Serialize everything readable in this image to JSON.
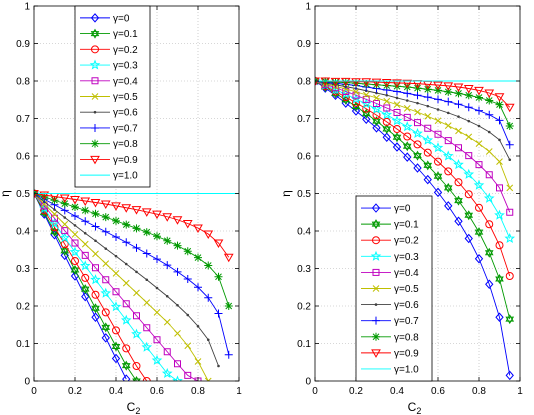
{
  "chart_data": [
    {
      "type": "line",
      "title": "",
      "xlabel": "C",
      "xlabel_sub": "2",
      "ylabel": "η",
      "xlim": [
        0,
        1
      ],
      "ylim": [
        0,
        1
      ],
      "xticks": [
        0,
        0.2,
        0.4,
        0.6,
        0.8,
        1
      ],
      "yticks": [
        0,
        0.1,
        0.2,
        0.3,
        0.4,
        0.5,
        0.6,
        0.7,
        0.8,
        0.9,
        1
      ],
      "xtick_labels": [
        "0",
        "0.2",
        "0.4",
        "0.6",
        "0.8",
        "1"
      ],
      "ytick_labels": [
        "0",
        "0.1",
        "0.2",
        "0.3",
        "0.4",
        "0.5",
        "0.6",
        "0.7",
        "0.8",
        "0.9",
        "1"
      ],
      "grid": true,
      "legend_position": "upper-center",
      "series": [
        {
          "name": "γ=0",
          "color": "#0000ff",
          "marker": "diamond",
          "x": [
            0,
            0.05,
            0.1,
            0.15,
            0.2,
            0.25,
            0.3,
            0.35,
            0.4,
            0.45
          ],
          "y": [
            0.5,
            0.445,
            0.39,
            0.335,
            0.28,
            0.225,
            0.17,
            0.115,
            0.06,
            0.005
          ]
        },
        {
          "name": "γ=0.1",
          "color": "#009900",
          "marker": "hexagram",
          "x": [
            0,
            0.05,
            0.1,
            0.15,
            0.2,
            0.25,
            0.3,
            0.35,
            0.4,
            0.45,
            0.5
          ],
          "y": [
            0.5,
            0.449,
            0.398,
            0.347,
            0.296,
            0.245,
            0.194,
            0.143,
            0.092,
            0.041,
            0.0
          ]
        },
        {
          "name": "γ=0.2",
          "color": "#ff0000",
          "marker": "circle",
          "x": [
            0,
            0.05,
            0.1,
            0.15,
            0.2,
            0.25,
            0.3,
            0.35,
            0.4,
            0.45,
            0.5,
            0.55
          ],
          "y": [
            0.5,
            0.455,
            0.41,
            0.365,
            0.32,
            0.275,
            0.23,
            0.183,
            0.135,
            0.087,
            0.04,
            0.0
          ]
        },
        {
          "name": "γ=0.3",
          "color": "#00ffff",
          "marker": "star",
          "x": [
            0,
            0.05,
            0.1,
            0.15,
            0.2,
            0.25,
            0.3,
            0.35,
            0.4,
            0.45,
            0.5,
            0.55,
            0.6,
            0.65,
            0.7
          ],
          "y": [
            0.5,
            0.46,
            0.42,
            0.382,
            0.344,
            0.307,
            0.27,
            0.234,
            0.198,
            0.162,
            0.125,
            0.09,
            0.055,
            0.02,
            0.0
          ]
        },
        {
          "name": "γ=0.4",
          "color": "#bf00bf",
          "marker": "square",
          "x": [
            0,
            0.05,
            0.1,
            0.15,
            0.2,
            0.25,
            0.3,
            0.35,
            0.4,
            0.45,
            0.5,
            0.55,
            0.6,
            0.65,
            0.7,
            0.75,
            0.8
          ],
          "y": [
            0.5,
            0.467,
            0.434,
            0.401,
            0.368,
            0.335,
            0.302,
            0.27,
            0.238,
            0.206,
            0.174,
            0.142,
            0.11,
            0.078,
            0.046,
            0.015,
            0.0
          ]
        },
        {
          "name": "γ=0.5",
          "color": "#bfbf00",
          "marker": "x",
          "x": [
            0,
            0.05,
            0.1,
            0.15,
            0.2,
            0.25,
            0.3,
            0.35,
            0.4,
            0.45,
            0.5,
            0.55,
            0.6,
            0.65,
            0.7,
            0.75,
            0.8,
            0.85
          ],
          "y": [
            0.5,
            0.472,
            0.445,
            0.418,
            0.391,
            0.365,
            0.339,
            0.313,
            0.287,
            0.261,
            0.235,
            0.209,
            0.183,
            0.157,
            0.127,
            0.094,
            0.052,
            0.0
          ]
        },
        {
          "name": "γ=0.6",
          "color": "#404040",
          "marker": "dot",
          "x": [
            0,
            0.05,
            0.1,
            0.15,
            0.2,
            0.25,
            0.3,
            0.35,
            0.4,
            0.45,
            0.5,
            0.55,
            0.6,
            0.65,
            0.7,
            0.75,
            0.8,
            0.85,
            0.9
          ],
          "y": [
            0.5,
            0.478,
            0.457,
            0.436,
            0.415,
            0.394,
            0.374,
            0.353,
            0.333,
            0.312,
            0.291,
            0.27,
            0.248,
            0.226,
            0.202,
            0.176,
            0.146,
            0.11,
            0.04
          ]
        },
        {
          "name": "γ=0.7",
          "color": "#0000ff",
          "marker": "plus",
          "x": [
            0,
            0.05,
            0.1,
            0.15,
            0.2,
            0.25,
            0.3,
            0.35,
            0.4,
            0.45,
            0.5,
            0.55,
            0.6,
            0.65,
            0.7,
            0.75,
            0.8,
            0.85,
            0.9,
            0.95
          ],
          "y": [
            0.5,
            0.485,
            0.47,
            0.455,
            0.44,
            0.426,
            0.412,
            0.398,
            0.384,
            0.37,
            0.355,
            0.34,
            0.325,
            0.309,
            0.291,
            0.272,
            0.25,
            0.222,
            0.18,
            0.07
          ]
        },
        {
          "name": "γ=0.8",
          "color": "#009900",
          "marker": "asterisk",
          "x": [
            0,
            0.05,
            0.1,
            0.15,
            0.2,
            0.25,
            0.3,
            0.35,
            0.4,
            0.45,
            0.5,
            0.55,
            0.6,
            0.65,
            0.7,
            0.75,
            0.8,
            0.85,
            0.9,
            0.95
          ],
          "y": [
            0.5,
            0.491,
            0.482,
            0.473,
            0.464,
            0.455,
            0.446,
            0.437,
            0.427,
            0.417,
            0.407,
            0.397,
            0.386,
            0.374,
            0.361,
            0.346,
            0.329,
            0.308,
            0.278,
            0.2
          ]
        },
        {
          "name": "γ=0.9",
          "color": "#ff0000",
          "marker": "triangle-down",
          "x": [
            0,
            0.05,
            0.1,
            0.15,
            0.2,
            0.25,
            0.3,
            0.35,
            0.4,
            0.45,
            0.5,
            0.55,
            0.6,
            0.65,
            0.7,
            0.75,
            0.8,
            0.85,
            0.9,
            0.95
          ],
          "y": [
            0.5,
            0.496,
            0.492,
            0.488,
            0.484,
            0.48,
            0.476,
            0.472,
            0.467,
            0.462,
            0.457,
            0.451,
            0.445,
            0.438,
            0.43,
            0.42,
            0.408,
            0.392,
            0.368,
            0.33
          ]
        },
        {
          "name": "γ=1.0",
          "color": "#00ffff",
          "marker": "none",
          "x": [
            0,
            1
          ],
          "y": [
            0.5,
            0.5
          ]
        }
      ]
    },
    {
      "type": "line",
      "title": "",
      "xlabel": "C",
      "xlabel_sub": "2",
      "ylabel": "η",
      "xlim": [
        0,
        1
      ],
      "ylim": [
        0,
        1
      ],
      "xticks": [
        0,
        0.2,
        0.4,
        0.6,
        0.8,
        1
      ],
      "yticks": [
        0,
        0.1,
        0.2,
        0.3,
        0.4,
        0.5,
        0.6,
        0.7,
        0.8,
        0.9,
        1
      ],
      "xtick_labels": [
        "0",
        "0.2",
        "0.4",
        "0.6",
        "0.8",
        "1"
      ],
      "ytick_labels": [
        "0",
        "0.1",
        "0.2",
        "0.3",
        "0.4",
        "0.5",
        "0.6",
        "0.7",
        "0.8",
        "0.9",
        "1"
      ],
      "grid": true,
      "legend_position": "lower-center",
      "series": [
        {
          "name": "γ=0",
          "color": "#0000ff",
          "marker": "diamond",
          "x": [
            0,
            0.05,
            0.1,
            0.15,
            0.2,
            0.25,
            0.3,
            0.35,
            0.4,
            0.45,
            0.5,
            0.55,
            0.6,
            0.65,
            0.7,
            0.75,
            0.8,
            0.85,
            0.9,
            0.95
          ],
          "y": [
            0.8,
            0.781,
            0.762,
            0.741,
            0.72,
            0.698,
            0.675,
            0.65,
            0.624,
            0.597,
            0.568,
            0.537,
            0.503,
            0.467,
            0.426,
            0.38,
            0.326,
            0.258,
            0.17,
            0.015
          ]
        },
        {
          "name": "γ=0.1",
          "color": "#009900",
          "marker": "hexagram",
          "x": [
            0,
            0.05,
            0.1,
            0.15,
            0.2,
            0.25,
            0.3,
            0.35,
            0.4,
            0.45,
            0.5,
            0.55,
            0.6,
            0.65,
            0.7,
            0.75,
            0.8,
            0.85,
            0.9,
            0.95
          ],
          "y": [
            0.8,
            0.784,
            0.767,
            0.75,
            0.732,
            0.713,
            0.693,
            0.672,
            0.65,
            0.626,
            0.601,
            0.575,
            0.546,
            0.515,
            0.481,
            0.442,
            0.397,
            0.342,
            0.272,
            0.165
          ]
        },
        {
          "name": "γ=0.2",
          "color": "#ff0000",
          "marker": "circle",
          "x": [
            0,
            0.05,
            0.1,
            0.15,
            0.2,
            0.25,
            0.3,
            0.35,
            0.4,
            0.45,
            0.5,
            0.55,
            0.6,
            0.65,
            0.7,
            0.75,
            0.8,
            0.85,
            0.9,
            0.95
          ],
          "y": [
            0.8,
            0.786,
            0.772,
            0.757,
            0.742,
            0.726,
            0.709,
            0.691,
            0.672,
            0.652,
            0.631,
            0.609,
            0.585,
            0.559,
            0.53,
            0.498,
            0.462,
            0.418,
            0.362,
            0.28
          ]
        },
        {
          "name": "γ=0.3",
          "color": "#00ffff",
          "marker": "star",
          "x": [
            0,
            0.05,
            0.1,
            0.15,
            0.2,
            0.25,
            0.3,
            0.35,
            0.4,
            0.45,
            0.5,
            0.55,
            0.6,
            0.65,
            0.7,
            0.75,
            0.8,
            0.85,
            0.9,
            0.95
          ],
          "y": [
            0.8,
            0.789,
            0.777,
            0.765,
            0.752,
            0.739,
            0.725,
            0.71,
            0.694,
            0.678,
            0.66,
            0.642,
            0.622,
            0.6,
            0.577,
            0.551,
            0.522,
            0.487,
            0.442,
            0.38
          ]
        },
        {
          "name": "γ=0.4",
          "color": "#bf00bf",
          "marker": "square",
          "x": [
            0,
            0.05,
            0.1,
            0.15,
            0.2,
            0.25,
            0.3,
            0.35,
            0.4,
            0.45,
            0.5,
            0.55,
            0.6,
            0.65,
            0.7,
            0.75,
            0.8,
            0.85,
            0.9,
            0.95
          ],
          "y": [
            0.8,
            0.791,
            0.782,
            0.772,
            0.762,
            0.751,
            0.74,
            0.728,
            0.716,
            0.703,
            0.689,
            0.674,
            0.658,
            0.641,
            0.622,
            0.601,
            0.577,
            0.55,
            0.515,
            0.45
          ]
        },
        {
          "name": "γ=0.5",
          "color": "#bfbf00",
          "marker": "x",
          "x": [
            0,
            0.05,
            0.1,
            0.15,
            0.2,
            0.25,
            0.3,
            0.35,
            0.4,
            0.45,
            0.5,
            0.55,
            0.6,
            0.65,
            0.7,
            0.75,
            0.8,
            0.85,
            0.9,
            0.95
          ],
          "y": [
            0.8,
            0.793,
            0.786,
            0.779,
            0.771,
            0.763,
            0.755,
            0.746,
            0.737,
            0.727,
            0.717,
            0.706,
            0.694,
            0.681,
            0.667,
            0.651,
            0.633,
            0.612,
            0.585,
            0.515
          ]
        },
        {
          "name": "γ=0.6",
          "color": "#404040",
          "marker": "dot",
          "x": [
            0,
            0.05,
            0.1,
            0.15,
            0.2,
            0.25,
            0.3,
            0.35,
            0.4,
            0.45,
            0.5,
            0.55,
            0.6,
            0.65,
            0.7,
            0.75,
            0.8,
            0.85,
            0.9,
            0.95
          ],
          "y": [
            0.8,
            0.795,
            0.79,
            0.785,
            0.78,
            0.774,
            0.768,
            0.762,
            0.755,
            0.748,
            0.741,
            0.733,
            0.724,
            0.715,
            0.705,
            0.693,
            0.68,
            0.664,
            0.643,
            0.59
          ]
        },
        {
          "name": "γ=0.7",
          "color": "#0000ff",
          "marker": "plus",
          "x": [
            0,
            0.05,
            0.1,
            0.15,
            0.2,
            0.25,
            0.3,
            0.35,
            0.4,
            0.45,
            0.5,
            0.55,
            0.6,
            0.65,
            0.7,
            0.75,
            0.8,
            0.85,
            0.9,
            0.95
          ],
          "y": [
            0.8,
            0.797,
            0.794,
            0.791,
            0.788,
            0.784,
            0.78,
            0.776,
            0.772,
            0.767,
            0.762,
            0.757,
            0.751,
            0.745,
            0.738,
            0.73,
            0.721,
            0.71,
            0.695,
            0.63
          ]
        },
        {
          "name": "γ=0.8",
          "color": "#009900",
          "marker": "asterisk",
          "x": [
            0,
            0.05,
            0.1,
            0.15,
            0.2,
            0.25,
            0.3,
            0.35,
            0.4,
            0.45,
            0.5,
            0.55,
            0.6,
            0.65,
            0.7,
            0.75,
            0.8,
            0.85,
            0.9,
            0.95
          ],
          "y": [
            0.8,
            0.799,
            0.797,
            0.796,
            0.794,
            0.792,
            0.79,
            0.788,
            0.786,
            0.784,
            0.781,
            0.778,
            0.775,
            0.771,
            0.767,
            0.762,
            0.756,
            0.748,
            0.737,
            0.68
          ]
        },
        {
          "name": "γ=0.9",
          "color": "#ff0000",
          "marker": "triangle-down",
          "x": [
            0,
            0.05,
            0.1,
            0.15,
            0.2,
            0.25,
            0.3,
            0.35,
            0.4,
            0.45,
            0.5,
            0.55,
            0.6,
            0.65,
            0.7,
            0.75,
            0.8,
            0.85,
            0.9,
            0.95
          ],
          "y": [
            0.8,
            0.8,
            0.799,
            0.799,
            0.798,
            0.798,
            0.797,
            0.796,
            0.795,
            0.794,
            0.793,
            0.791,
            0.789,
            0.787,
            0.784,
            0.78,
            0.775,
            0.768,
            0.758,
            0.73
          ]
        },
        {
          "name": "γ=1.0",
          "color": "#00ffff",
          "marker": "none",
          "x": [
            0,
            1
          ],
          "y": [
            0.8,
            0.8
          ]
        }
      ]
    }
  ]
}
